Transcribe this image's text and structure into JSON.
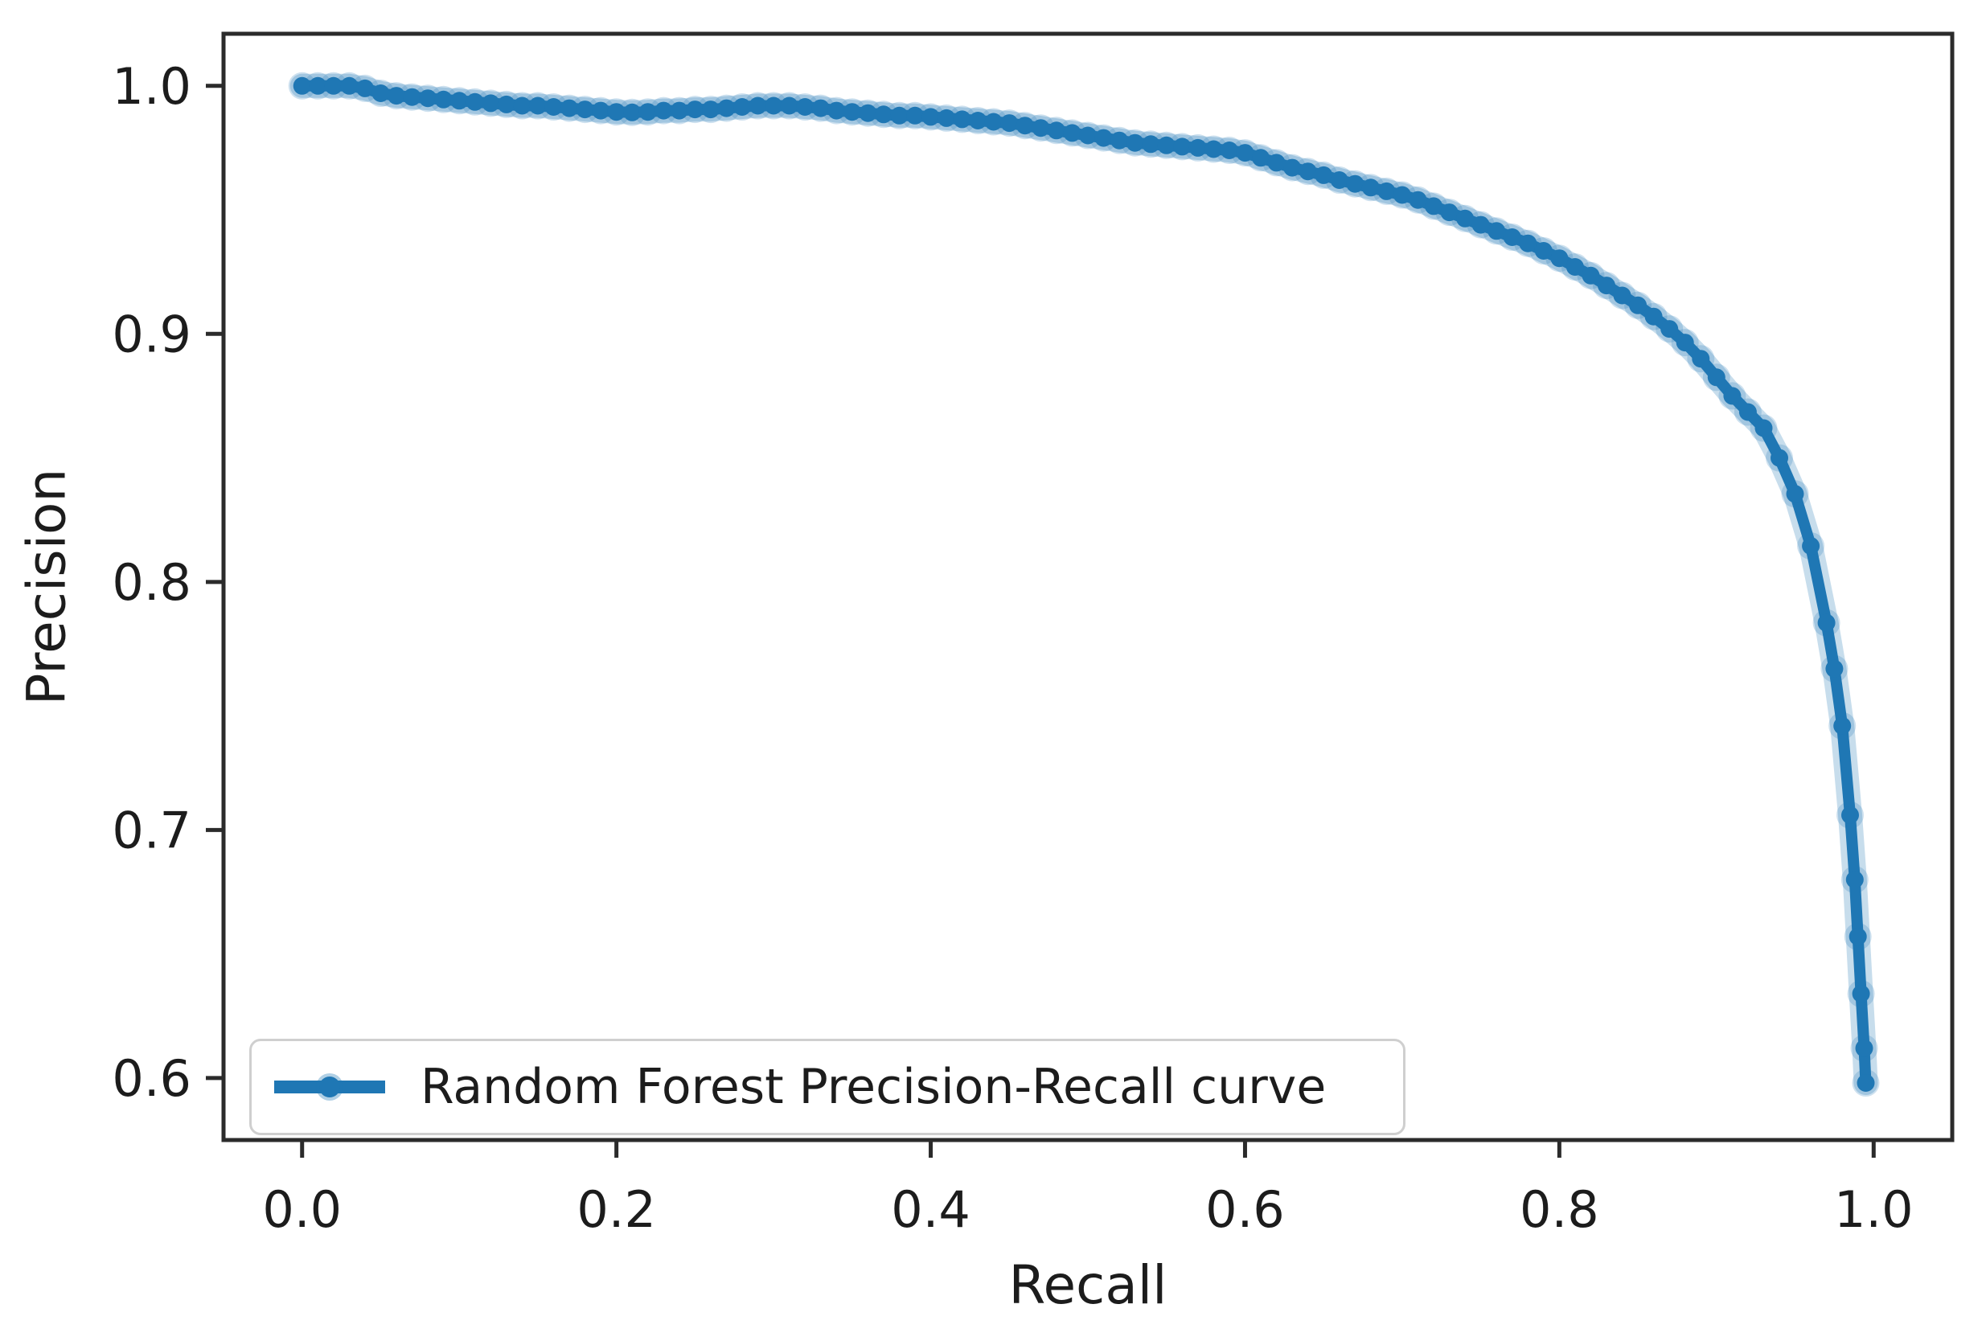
{
  "figure": {
    "background_color": "#ffffff",
    "axes": {
      "xlabel": "Recall",
      "ylabel": "Precision",
      "x_ticks": [
        "0.0",
        "0.2",
        "0.4",
        "0.6",
        "0.8",
        "1.0"
      ],
      "y_ticks": [
        "1.0",
        "0.9",
        "0.8",
        "0.7",
        "0.6"
      ],
      "spine_color": "#2b2b2b",
      "tick_label_color": "#1c1c1c",
      "grid": false
    },
    "legend": {
      "label": "Random Forest Precision-Recall curve",
      "line_color": "#1f77b4",
      "border_color": "#cfcfcf",
      "position": "lower left"
    }
  },
  "chart_data": {
    "type": "line",
    "title": "",
    "xlabel": "Recall",
    "ylabel": "Precision",
    "xlim": [
      -0.05,
      1.05
    ],
    "ylim": [
      0.575,
      1.021
    ],
    "x_tick_values": [
      0.0,
      0.2,
      0.4,
      0.6,
      0.8,
      1.0
    ],
    "y_tick_values": [
      1.0,
      0.9,
      0.8,
      0.7,
      0.6
    ],
    "grid": false,
    "legend_position": "lower left",
    "series": [
      {
        "name": "Random Forest Precision-Recall curve",
        "color": "#1f77b4",
        "marker": "point",
        "x": [
          0.0,
          0.01,
          0.02,
          0.03,
          0.04,
          0.05,
          0.06,
          0.07,
          0.08,
          0.09,
          0.1,
          0.11,
          0.12,
          0.13,
          0.14,
          0.15,
          0.16,
          0.17,
          0.18,
          0.19,
          0.2,
          0.21,
          0.22,
          0.23,
          0.24,
          0.25,
          0.26,
          0.27,
          0.28,
          0.29,
          0.3,
          0.31,
          0.32,
          0.33,
          0.34,
          0.35,
          0.36,
          0.37,
          0.38,
          0.39,
          0.4,
          0.41,
          0.42,
          0.43,
          0.44,
          0.45,
          0.46,
          0.47,
          0.48,
          0.49,
          0.5,
          0.51,
          0.52,
          0.53,
          0.54,
          0.55,
          0.56,
          0.57,
          0.58,
          0.59,
          0.6,
          0.61,
          0.62,
          0.63,
          0.64,
          0.65,
          0.66,
          0.67,
          0.68,
          0.69,
          0.7,
          0.71,
          0.72,
          0.73,
          0.74,
          0.75,
          0.76,
          0.77,
          0.78,
          0.79,
          0.8,
          0.81,
          0.82,
          0.83,
          0.84,
          0.85,
          0.86,
          0.87,
          0.88,
          0.89,
          0.9,
          0.91,
          0.92,
          0.93,
          0.94,
          0.95,
          0.96,
          0.97,
          0.975,
          0.98,
          0.985,
          0.988,
          0.99,
          0.992,
          0.994,
          0.995
        ],
        "y": [
          1.0,
          1.0,
          1.0,
          1.0,
          0.999,
          0.997,
          0.996,
          0.9955,
          0.995,
          0.9945,
          0.994,
          0.9935,
          0.993,
          0.9925,
          0.992,
          0.992,
          0.9915,
          0.991,
          0.9905,
          0.99,
          0.9895,
          0.9893,
          0.9895,
          0.99,
          0.99,
          0.9905,
          0.9905,
          0.991,
          0.9915,
          0.992,
          0.992,
          0.992,
          0.9915,
          0.991,
          0.99,
          0.9895,
          0.989,
          0.9885,
          0.988,
          0.988,
          0.9875,
          0.987,
          0.9865,
          0.986,
          0.9855,
          0.985,
          0.984,
          0.983,
          0.982,
          0.981,
          0.98,
          0.979,
          0.978,
          0.977,
          0.9765,
          0.976,
          0.9755,
          0.975,
          0.9745,
          0.974,
          0.973,
          0.971,
          0.969,
          0.967,
          0.9655,
          0.964,
          0.962,
          0.9605,
          0.959,
          0.9575,
          0.956,
          0.954,
          0.9515,
          0.949,
          0.9465,
          0.944,
          0.9415,
          0.939,
          0.9365,
          0.9335,
          0.9305,
          0.927,
          0.9235,
          0.9195,
          0.9155,
          0.9115,
          0.907,
          0.902,
          0.8965,
          0.89,
          0.8825,
          0.875,
          0.8685,
          0.862,
          0.85,
          0.8355,
          0.8145,
          0.7835,
          0.765,
          0.742,
          0.706,
          0.68,
          0.657,
          0.634,
          0.612,
          0.598
        ]
      }
    ]
  }
}
